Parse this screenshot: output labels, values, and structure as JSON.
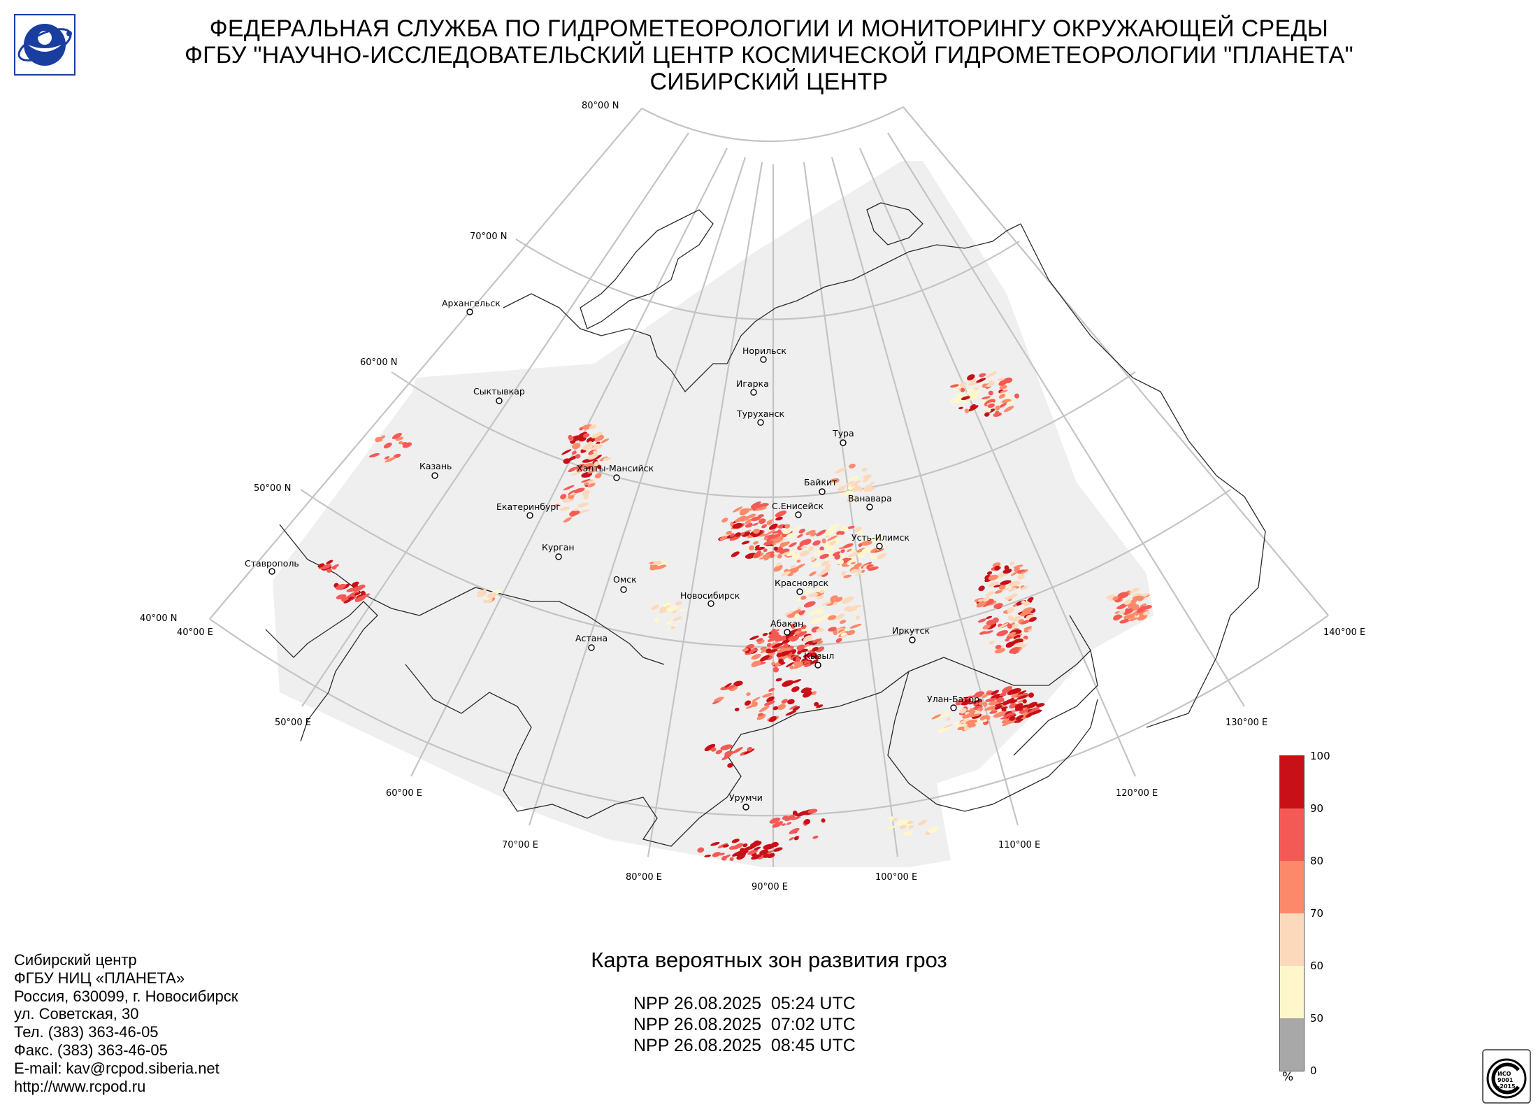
{
  "header": {
    "line1": "ФЕДЕРАЛЬНАЯ СЛУЖБА ПО ГИДРОМЕТЕОРОЛОГИИ И МОНИТОРИНГУ ОКРУЖАЮЩЕЙ СРЕДЫ",
    "line2": "ФГБУ \"НАУЧНО-ИССЛЕДОВАТЕЛЬСКИЙ ЦЕНТР КОСМИЧЕСКОЙ ГИДРОМЕТЕОРОЛОГИИ \"ПЛАНЕТА\"",
    "line3": "СИБИРСКИЙ ЦЕНТР"
  },
  "map": {
    "latitude_labels": [
      "80°00 N",
      "70°00 N",
      "60°00 N",
      "50°00 N",
      "40°00 N"
    ],
    "longitude_labels": [
      "40°00 E",
      "50°00 E",
      "60°00 E",
      "70°00 E",
      "80°00 E",
      "90°00 E",
      "100°00 E",
      "110°00 E",
      "120°00 E",
      "130°00 E",
      "140°00 E"
    ],
    "cities": [
      "Архангельск",
      "Сыктывкар",
      "Казань",
      "Ханты-Мансийск",
      "Екатеринбург",
      "Курган",
      "Ставрополь",
      "Омск",
      "Астана",
      "Новосибирск",
      "Норильск",
      "Игарка",
      "Туруханск",
      "Тура",
      "Байкит",
      "Ванавара",
      "С.Енисейск",
      "Усть-Илимск",
      "Красноярск",
      "Абакан",
      "Кызыл",
      "Иркутск",
      "Улан-Батор",
      "Урумчи"
    ],
    "colors": {
      "background_area": "#efefef",
      "grid": "#c4c4c4",
      "coastline": "#222222",
      "p50_60": "#fff7cc",
      "p60_70": "#fdd9bb",
      "p70_80": "#fc8a6a",
      "p80_90": "#f45a55",
      "p90_100": "#c81018"
    }
  },
  "product": {
    "title": "Карта вероятных зон развития гроз",
    "passes": [
      "NPP 26.08.2025  05:24 UTC",
      "NPP 26.08.2025  07:02 UTC",
      "NPP 26.08.2025  08:45 UTC"
    ]
  },
  "address": [
    "Сибирский центр",
    "ФГБУ НИЦ «ПЛАНЕТА»",
    "Россия, 630099, г. Новосибирск",
    "ул. Советская, 30",
    "Тел. (383) 363-46-05",
    "Факс. (383) 363-46-05",
    "E-mail: kav@rcpod.siberia.net",
    "http://www.rcpod.ru"
  ],
  "legend": {
    "ticks": [
      "100",
      "90",
      "80",
      "70",
      "60",
      "50",
      "0"
    ],
    "unit": "%",
    "colors": [
      "#c81018",
      "#f45a55",
      "#fc8a6a",
      "#fdd9bb",
      "#fff7cc",
      "#a8a8a8"
    ]
  },
  "cert": {
    "text": "ИСО 9001 -2015"
  }
}
